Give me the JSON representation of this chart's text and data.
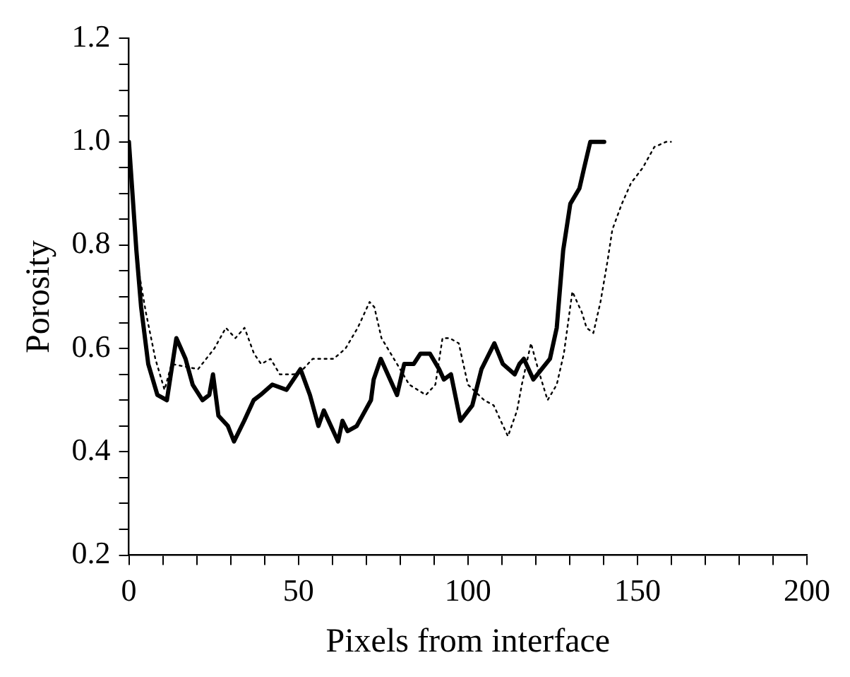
{
  "chart_data": {
    "type": "line",
    "xlabel": "Pixels from interface",
    "ylabel": "Porosity",
    "xlim": [
      0,
      200
    ],
    "xticks": [
      0,
      {
        "value": 10,
        "label": null
      },
      {
        "value": 20,
        "label": null
      },
      {
        "value": 30,
        "label": null
      },
      {
        "value": 40,
        "label": null
      },
      50,
      {
        "value": 60,
        "label": null
      },
      {
        "value": 70,
        "label": null
      },
      {
        "value": 80,
        "label": null
      },
      {
        "value": 90,
        "label": null
      },
      100,
      {
        "value": 110,
        "label": null
      },
      {
        "value": 120,
        "label": null
      },
      {
        "value": 130,
        "label": null
      },
      {
        "value": 140,
        "label": null
      },
      150,
      {
        "value": 160,
        "label": null
      },
      {
        "value": 170,
        "label": null
      },
      {
        "value": 180,
        "label": null
      },
      {
        "value": 190,
        "label": null
      },
      200
    ],
    "ylim": [
      0.2,
      1.2
    ],
    "yticks": [
      {
        "value": 0.2,
        "label": "0.2"
      },
      {
        "value": 0.25,
        "label": null
      },
      {
        "value": 0.3,
        "label": null
      },
      {
        "value": 0.35,
        "label": null
      },
      {
        "value": 0.4,
        "label": "0.4"
      },
      {
        "value": 0.45,
        "label": null
      },
      {
        "value": 0.5,
        "label": null
      },
      {
        "value": 0.55,
        "label": null
      },
      {
        "value": 0.6,
        "label": "0.6"
      },
      {
        "value": 0.65,
        "label": null
      },
      {
        "value": 0.7,
        "label": null
      },
      {
        "value": 0.75,
        "label": null
      },
      {
        "value": 0.8,
        "label": "0.8"
      },
      {
        "value": 0.85,
        "label": null
      },
      {
        "value": 0.9,
        "label": null
      },
      {
        "value": 0.95,
        "label": null
      },
      {
        "value": 1.0,
        "label": "1.0"
      },
      {
        "value": 1.05,
        "label": null
      },
      {
        "value": 1.1,
        "label": null
      },
      {
        "value": 1.15,
        "label": null
      },
      {
        "value": 1.2,
        "label": "1.2"
      }
    ],
    "grid": false,
    "legend": false,
    "marker": "none",
    "series": [
      {
        "color": "#000000",
        "line_style": "solid",
        "x": [
          0,
          2.2,
          3.6,
          5.7,
          8.4,
          11.2,
          14,
          16.7,
          18.8,
          21.7,
          23.7,
          24.8,
          26.4,
          29.2,
          31,
          34,
          36.8,
          38.8,
          42.3,
          46.5,
          50.6,
          53.4,
          55.9,
          57.5,
          58.9,
          61.7,
          63,
          64.5,
          67.2,
          71.4,
          72.2,
          74.3,
          79.1,
          81.2,
          84,
          86,
          88.8,
          91.5,
          92.9,
          95,
          97.8,
          101.3,
          104,
          107.8,
          110.3,
          113.8,
          115.2,
          116.5,
          119.3,
          124.2,
          126.2,
          128.1,
          130.2,
          132.9,
          134.3,
          136.1,
          140.2
        ],
        "values": [
          1.0,
          0.79,
          0.68,
          0.57,
          0.51,
          0.5,
          0.62,
          0.58,
          0.53,
          0.5,
          0.51,
          0.55,
          0.47,
          0.45,
          0.42,
          0.46,
          0.5,
          0.51,
          0.53,
          0.52,
          0.56,
          0.51,
          0.45,
          0.48,
          0.46,
          0.42,
          0.46,
          0.44,
          0.45,
          0.5,
          0.54,
          0.58,
          0.51,
          0.57,
          0.57,
          0.59,
          0.59,
          0.56,
          0.54,
          0.55,
          0.46,
          0.49,
          0.56,
          0.61,
          0.57,
          0.55,
          0.57,
          0.58,
          0.54,
          0.58,
          0.64,
          0.79,
          0.88,
          0.91,
          0.95,
          1.0,
          1.0
        ]
      },
      {
        "color": "#000000",
        "line_style": "dotted",
        "x": [
          0,
          2.9,
          5,
          7.8,
          10.5,
          12.6,
          20.4,
          25.2,
          28.6,
          31.4,
          34.1,
          36.9,
          39,
          41.8,
          44.5,
          48.6,
          51.4,
          54.2,
          60.4,
          63.9,
          67.5,
          71,
          72.4,
          73.8,
          74.5,
          80,
          82.7,
          87.6,
          90.4,
          92.5,
          94.6,
          97.3,
          100,
          104.8,
          107.6,
          111.8,
          114.5,
          115.9,
          118.6,
          120.7,
          123.5,
          126.2,
          128.3,
          130.8,
          133.6,
          135,
          137,
          139.1,
          141.2,
          142.6,
          145.4,
          148.1,
          151.6,
          155,
          158.5,
          159.9
        ],
        "values": [
          1.0,
          0.75,
          0.67,
          0.58,
          0.52,
          0.57,
          0.56,
          0.6,
          0.64,
          0.62,
          0.64,
          0.59,
          0.57,
          0.58,
          0.55,
          0.55,
          0.56,
          0.58,
          0.58,
          0.6,
          0.64,
          0.69,
          0.68,
          0.64,
          0.62,
          0.56,
          0.53,
          0.51,
          0.53,
          0.62,
          0.62,
          0.61,
          0.53,
          0.5,
          0.49,
          0.43,
          0.48,
          0.53,
          0.61,
          0.56,
          0.5,
          0.53,
          0.59,
          0.71,
          0.67,
          0.64,
          0.63,
          0.69,
          0.77,
          0.83,
          0.88,
          0.92,
          0.95,
          0.99,
          1.0,
          1.0
        ]
      }
    ]
  }
}
